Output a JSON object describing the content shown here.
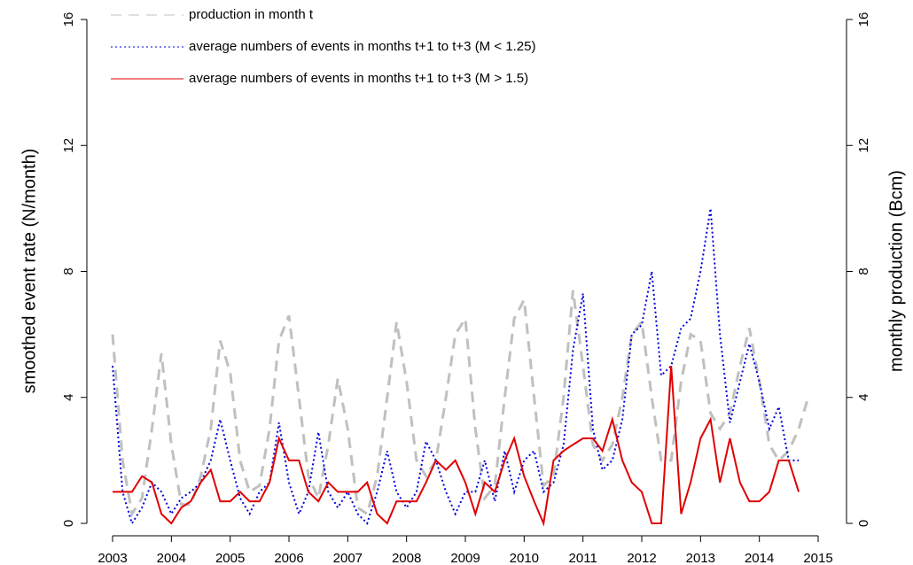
{
  "chart_data": {
    "type": "line",
    "y_label": "smoothed event rate (N/month)",
    "y2_label": "monthly production (Bcm)",
    "x": [
      2003,
      2003.17,
      2003.33,
      2003.5,
      2003.67,
      2003.83,
      2004,
      2004.17,
      2004.33,
      2004.5,
      2004.67,
      2004.83,
      2005,
      2005.17,
      2005.33,
      2005.5,
      2005.67,
      2005.83,
      2006,
      2006.17,
      2006.33,
      2006.5,
      2006.67,
      2006.83,
      2007,
      2007.17,
      2007.33,
      2007.5,
      2007.67,
      2007.83,
      2008,
      2008.17,
      2008.33,
      2008.5,
      2008.67,
      2008.83,
      2009,
      2009.17,
      2009.33,
      2009.5,
      2009.67,
      2009.83,
      2010,
      2010.17,
      2010.33,
      2010.5,
      2010.67,
      2010.83,
      2011,
      2011.17,
      2011.33,
      2011.5,
      2011.67,
      2011.83,
      2012,
      2012.17,
      2012.33,
      2012.5,
      2012.67,
      2012.83,
      2013,
      2013.17,
      2013.33,
      2013.5,
      2013.67,
      2013.83,
      2014,
      2014.17,
      2014.33,
      2014.5,
      2014.67,
      2014.83
    ],
    "series": [
      {
        "name": "production in month t",
        "color": "#c0c0c0",
        "style": "dashed",
        "axis": "y2",
        "values": [
          6,
          2,
          0.3,
          0.8,
          3,
          5.4,
          2.5,
          0.6,
          0.6,
          1.5,
          3,
          5.8,
          4.8,
          2,
          1,
          1.2,
          3,
          5.8,
          6.6,
          4,
          1.5,
          0.8,
          2.5,
          4.6,
          3,
          0.5,
          0.3,
          1.5,
          4,
          6.4,
          4.5,
          2,
          1.5,
          2,
          4,
          6,
          6.5,
          3,
          0.8,
          1.2,
          4,
          6.5,
          7.1,
          4,
          1.2,
          1.5,
          4,
          7.4,
          5,
          2.5,
          2,
          2.5,
          4,
          6,
          6.4,
          4,
          2,
          2,
          4.5,
          6,
          5.8,
          3.5,
          3,
          3.5,
          5,
          6.2,
          4.5,
          2.5,
          2,
          2.3,
          3,
          4
        ]
      },
      {
        "name": "average numbers of events in months t+1 to t+3 (M < 1.25)",
        "color": "#0000dd",
        "style": "dotted",
        "values": [
          5,
          1,
          0,
          0.5,
          1.3,
          1,
          0.3,
          0.8,
          1,
          1.3,
          2,
          3.3,
          2,
          0.8,
          0.3,
          1,
          1.3,
          3.2,
          1.3,
          0.3,
          1,
          2.9,
          1,
          0.5,
          1,
          0.3,
          0,
          1,
          2.3,
          1,
          0.5,
          1,
          2.6,
          2,
          1,
          0.3,
          1,
          1,
          2,
          0.7,
          2.3,
          1,
          2,
          2.3,
          1,
          1.3,
          2.5,
          5.5,
          7.3,
          3,
          1.7,
          2,
          3.3,
          6,
          6.3,
          8,
          4.7,
          5,
          6.2,
          6.5,
          8,
          10,
          6,
          3.2,
          4.5,
          5.7,
          4.5,
          3,
          3.7,
          2,
          2,
          null
        ]
      },
      {
        "name": "average numbers of events in months t+1 to t+3 (M > 1.5)",
        "color": "#e00000",
        "style": "solid",
        "values": [
          1,
          1,
          1,
          1.5,
          1.3,
          0.3,
          0,
          0.5,
          0.7,
          1.3,
          1.7,
          0.7,
          0.7,
          1,
          0.7,
          0.7,
          1.3,
          2.7,
          2,
          2,
          1,
          0.7,
          1.3,
          1,
          1,
          1,
          1.3,
          0.3,
          0,
          0.7,
          0.7,
          0.7,
          1.3,
          2,
          1.7,
          2,
          1.3,
          0.3,
          1.3,
          1,
          2,
          2.7,
          1.5,
          0.7,
          0,
          2,
          2.3,
          2.5,
          2.7,
          2.7,
          2.3,
          3.3,
          2,
          1.3,
          1,
          0,
          0,
          5,
          0.3,
          1.3,
          2.7,
          3.3,
          1.3,
          2.7,
          1.3,
          0.7,
          0.7,
          1,
          2,
          2,
          1,
          null
        ]
      }
    ],
    "xlim": [
      2003,
      2015
    ],
    "xticks": [
      2003,
      2004,
      2005,
      2006,
      2007,
      2008,
      2009,
      2010,
      2011,
      2012,
      2013,
      2014,
      2015
    ],
    "ylim": [
      0,
      16
    ],
    "yticks": [
      0,
      4,
      8,
      12,
      16
    ],
    "y2lim": [
      0,
      16
    ],
    "y2ticks": [
      0,
      4,
      8,
      12,
      16
    ],
    "legend": "top-left"
  }
}
